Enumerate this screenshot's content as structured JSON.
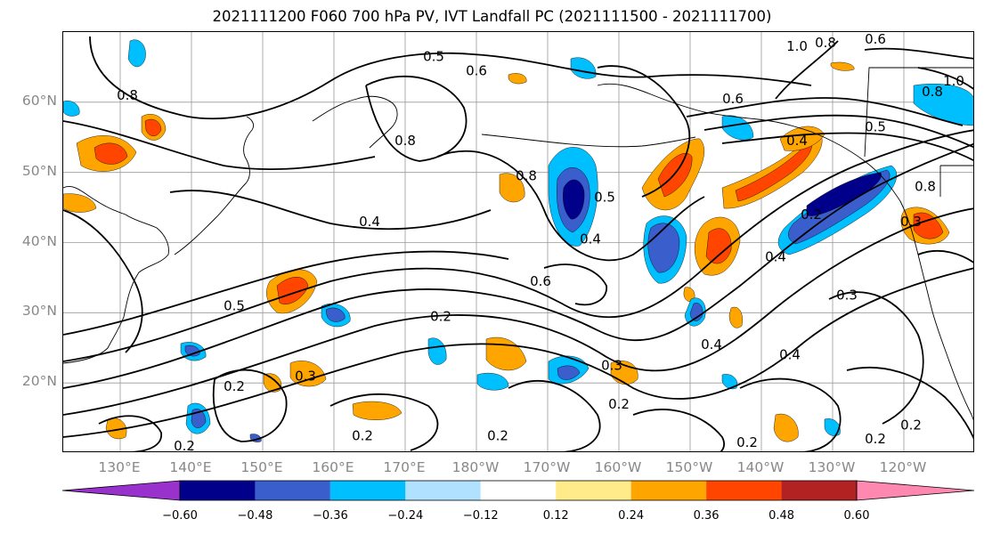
{
  "title": "2021111200 F060 700 hPa PV, IVT Landfall PC (2021111500 - 2021111700)",
  "axes": {
    "lat_labels": [
      "60°N",
      "50°N",
      "40°N",
      "30°N",
      "20°N"
    ],
    "lat_values": [
      60,
      50,
      40,
      30,
      20
    ],
    "lon_labels": [
      "130°E",
      "140°E",
      "150°E",
      "160°E",
      "170°E",
      "180°W",
      "170°W",
      "160°W",
      "150°W",
      "140°W",
      "130°W",
      "120°W"
    ],
    "lon_values": [
      130,
      140,
      150,
      160,
      170,
      180,
      190,
      200,
      210,
      220,
      230,
      240
    ],
    "lon_range": [
      122,
      250
    ],
    "lat_range": [
      10,
      70
    ]
  },
  "contour_labels": [
    {
      "text": "0.5",
      "lon": 174,
      "lat": 66.5
    },
    {
      "text": "0.6",
      "lon": 180,
      "lat": 64.5
    },
    {
      "text": "0.8",
      "lon": 131,
      "lat": 61
    },
    {
      "text": "0.8",
      "lon": 170,
      "lat": 54.5
    },
    {
      "text": "0.8",
      "lon": 187,
      "lat": 49.5
    },
    {
      "text": "0.4",
      "lon": 165,
      "lat": 43
    },
    {
      "text": "0.5",
      "lon": 198,
      "lat": 46.5
    },
    {
      "text": "0.4",
      "lon": 196,
      "lat": 40.5
    },
    {
      "text": "0.6",
      "lon": 189,
      "lat": 34.5
    },
    {
      "text": "0.5",
      "lon": 146,
      "lat": 31
    },
    {
      "text": "0.2",
      "lon": 175,
      "lat": 29.5
    },
    {
      "text": "0.3",
      "lon": 156,
      "lat": 21
    },
    {
      "text": "0.2",
      "lon": 146,
      "lat": 19.5
    },
    {
      "text": "0.2",
      "lon": 139,
      "lat": 11
    },
    {
      "text": "0.2",
      "lon": 164,
      "lat": 12.5
    },
    {
      "text": "0.2",
      "lon": 183,
      "lat": 12.5
    },
    {
      "text": "0.2",
      "lon": 200,
      "lat": 17
    },
    {
      "text": "0.3",
      "lon": 199,
      "lat": 22.5
    },
    {
      "text": "0.2",
      "lon": 218,
      "lat": 11.5
    },
    {
      "text": "0.4",
      "lon": 213,
      "lat": 25.5
    },
    {
      "text": "0.4",
      "lon": 224,
      "lat": 24
    },
    {
      "text": "0.3",
      "lon": 232,
      "lat": 32.5
    },
    {
      "text": "0.2",
      "lon": 241,
      "lat": 14
    },
    {
      "text": "0.2",
      "lon": 236,
      "lat": 12
    },
    {
      "text": "0.4",
      "lon": 222,
      "lat": 38
    },
    {
      "text": "0.2",
      "lon": 227,
      "lat": 44
    },
    {
      "text": "0.4",
      "lon": 225,
      "lat": 54.5
    },
    {
      "text": "0.5",
      "lon": 236,
      "lat": 56.5
    },
    {
      "text": "0.8",
      "lon": 243,
      "lat": 48
    },
    {
      "text": "0.3",
      "lon": 241,
      "lat": 43
    },
    {
      "text": "1.0",
      "lon": 225,
      "lat": 68
    },
    {
      "text": "0.8",
      "lon": 229,
      "lat": 68.5
    },
    {
      "text": "0.6",
      "lon": 236,
      "lat": 69
    },
    {
      "text": "1.0",
      "lon": 247,
      "lat": 63
    },
    {
      "text": "0.8",
      "lon": 244,
      "lat": 61.5
    },
    {
      "text": "0.6",
      "lon": 216,
      "lat": 60.5
    }
  ],
  "colorbar": {
    "colors": [
      "#9932cc",
      "#00008b",
      "#3a5fcd",
      "#00bfff",
      "#b0e2ff",
      "#ffffff",
      "#ffeb8a",
      "#ffa500",
      "#ff4500",
      "#b22222",
      "#ff88b0"
    ],
    "tick_labels": [
      "−0.60",
      "−0.48",
      "−0.36",
      "−0.24",
      "−0.12",
      "0.12",
      "0.24",
      "0.36",
      "0.48",
      "0.60"
    ]
  }
}
